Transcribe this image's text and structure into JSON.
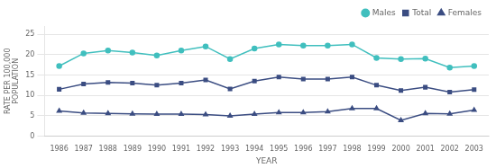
{
  "chart_data": {
    "type": "line",
    "xlabel": "YEAR",
    "ylabel": "RATE PER 100,000\nPOPULATION",
    "x": [
      1986,
      1987,
      1988,
      1989,
      1990,
      1991,
      1992,
      1993,
      1994,
      1995,
      1996,
      1997,
      1998,
      1999,
      2000,
      2001,
      2002,
      2003
    ],
    "series": [
      {
        "name": "Males",
        "color": "#40bfbe",
        "marker": "circle",
        "values": [
          17.2,
          20.3,
          21.0,
          20.5,
          19.8,
          21.0,
          22.0,
          18.9,
          21.5,
          22.5,
          22.2,
          22.2,
          22.5,
          19.2,
          18.9,
          19.0,
          16.8,
          17.2
        ]
      },
      {
        "name": "Total",
        "color": "#3b4d82",
        "marker": "square",
        "values": [
          11.5,
          12.8,
          13.2,
          13.0,
          12.5,
          13.0,
          13.8,
          11.6,
          13.5,
          14.5,
          14.0,
          14.0,
          14.5,
          12.5,
          11.2,
          12.0,
          10.8,
          11.4
        ]
      },
      {
        "name": "Females",
        "color": "#3b4d82",
        "marker": "triangle",
        "values": [
          6.2,
          5.7,
          5.6,
          5.5,
          5.4,
          5.4,
          5.3,
          5.0,
          5.4,
          5.8,
          5.8,
          6.0,
          6.8,
          6.8,
          3.9,
          5.6,
          5.5,
          6.4
        ]
      }
    ],
    "xlim": [
      1985.4,
      2003.6
    ],
    "xticks": [
      1986,
      1987,
      1988,
      1989,
      1990,
      1991,
      1992,
      1993,
      1994,
      1995,
      1996,
      1997,
      1998,
      1999,
      2000,
      2001,
      2002,
      2003
    ],
    "ylim": [
      0,
      27
    ],
    "yticks": [
      0,
      5,
      10,
      15,
      20,
      25
    ],
    "grid": "y",
    "legend": "upper right"
  }
}
